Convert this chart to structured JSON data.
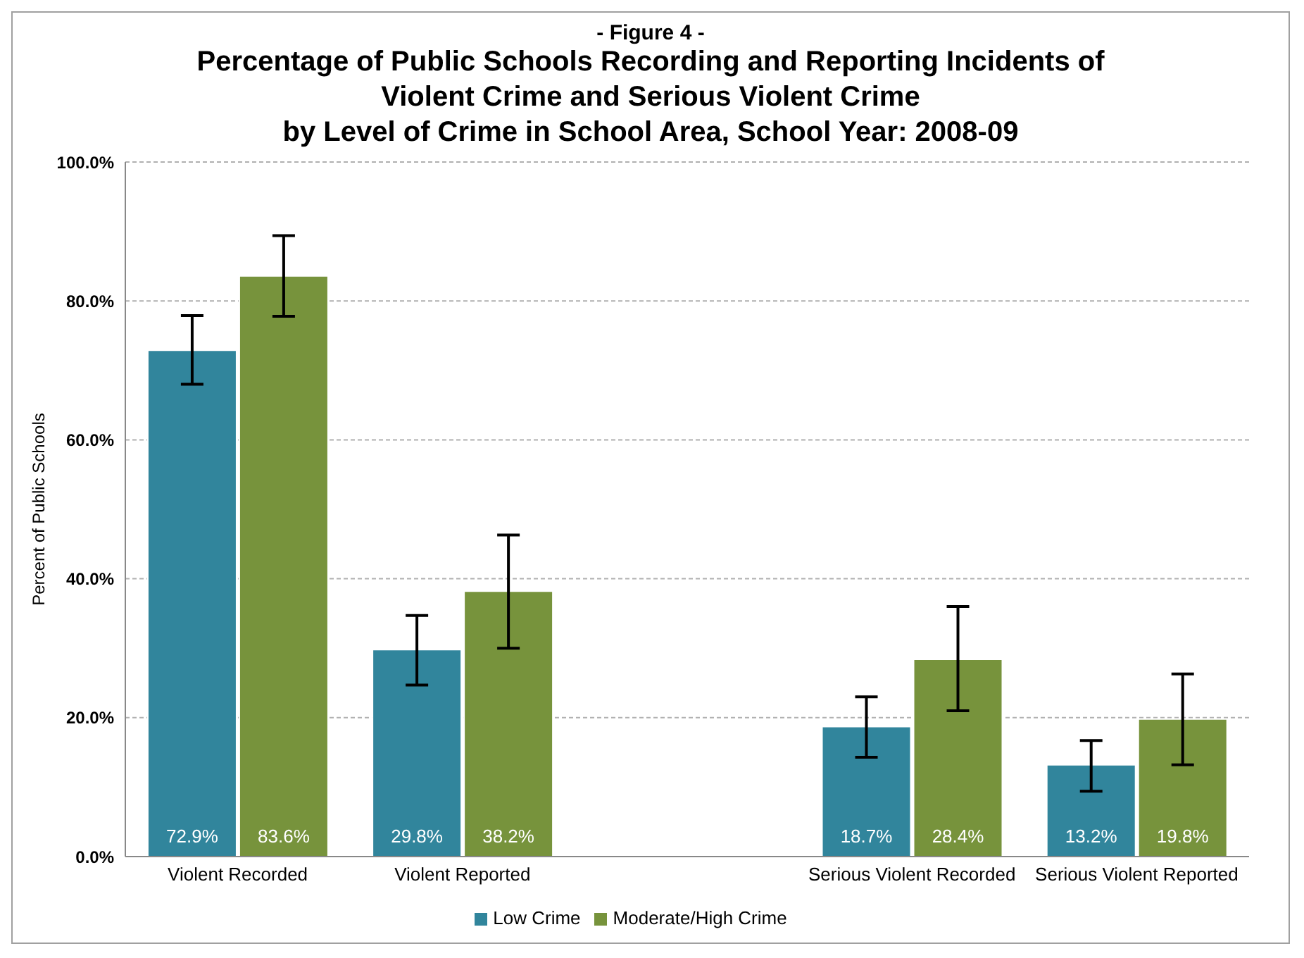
{
  "chart_data": {
    "type": "bar",
    "subtitle": "- Figure 4 -",
    "title": "Percentage of Public Schools Recording and Reporting Incidents of\nViolent Crime and Serious Violent Crime\nby Level of Crime in School Area, School Year: 2008-09",
    "ylabel": "Percent of Public Schools",
    "categories": [
      "Violent Recorded",
      "Violent Reported",
      null,
      "Serious Violent Recorded",
      "Serious Violent Reported"
    ],
    "series": [
      {
        "name": "Low Crime",
        "color": "#31859c",
        "values": [
          72.9,
          29.8,
          null,
          18.7,
          13.2
        ],
        "value_labels": [
          "72.9%",
          "29.8%",
          null,
          "18.7%",
          "13.2%"
        ],
        "errors": [
          [
            68.0,
            77.9
          ],
          [
            24.7,
            34.7
          ],
          null,
          [
            14.3,
            23.0
          ],
          [
            9.4,
            16.7
          ]
        ]
      },
      {
        "name": "Moderate/High Crime",
        "color": "#77933c",
        "values": [
          83.6,
          38.2,
          null,
          28.4,
          19.8
        ],
        "value_labels": [
          "83.6%",
          "38.2%",
          null,
          "28.4%",
          "19.8%"
        ],
        "errors": [
          [
            77.8,
            89.4
          ],
          [
            30.0,
            46.3
          ],
          null,
          [
            21.0,
            36.0
          ],
          [
            13.2,
            26.3
          ]
        ]
      }
    ],
    "ylim": [
      0,
      100
    ],
    "yticks": [
      {
        "value": 0,
        "label": "0.0%"
      },
      {
        "value": 20,
        "label": "20.0%"
      },
      {
        "value": 40,
        "label": "40.0%"
      },
      {
        "value": 60,
        "label": "60.0%"
      },
      {
        "value": 80,
        "label": "80.0%"
      },
      {
        "value": 100,
        "label": "100.0%"
      }
    ],
    "grid": "y",
    "legend": "bottom"
  }
}
